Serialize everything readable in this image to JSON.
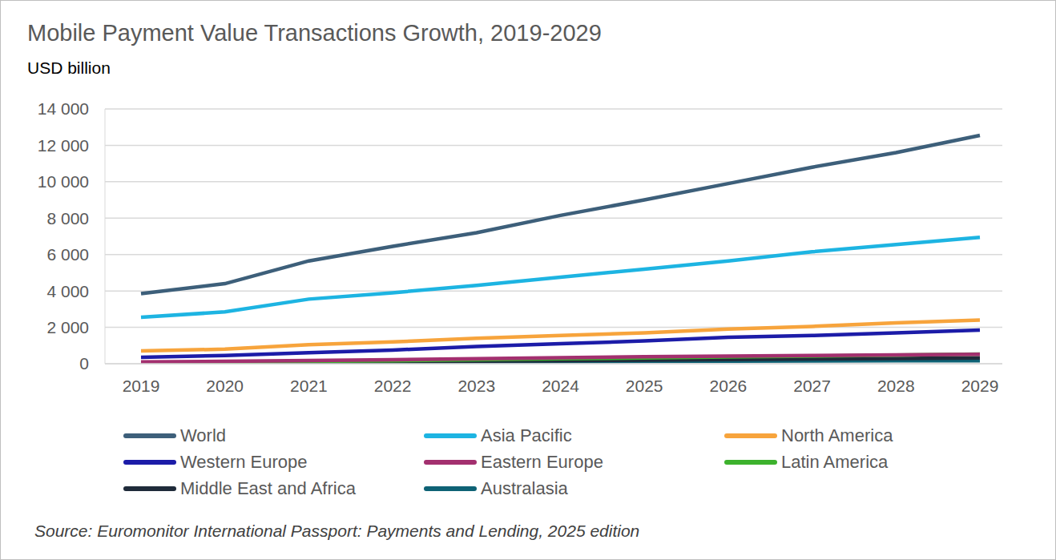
{
  "chart_data": {
    "type": "line",
    "title": "Mobile Payment Value Transactions Growth, 2019-2029",
    "subtitle": "USD billion",
    "source": "Source: Euromonitor International Passport: Payments and Lending, 2025 edition",
    "categories": [
      "2019",
      "2020",
      "2021",
      "2022",
      "2023",
      "2024",
      "2025",
      "2026",
      "2027",
      "2028",
      "2029"
    ],
    "series": [
      {
        "name": "World",
        "color": "#3d5f7a",
        "values": [
          3850,
          4400,
          5650,
          6450,
          7200,
          8150,
          9000,
          9900,
          10800,
          11600,
          12550
        ]
      },
      {
        "name": "Asia Pacific",
        "color": "#1db4e2",
        "values": [
          2550,
          2850,
          3550,
          3900,
          4300,
          4750,
          5200,
          5650,
          6150,
          6550,
          6950
        ]
      },
      {
        "name": "North America",
        "color": "#f7a43c",
        "values": [
          700,
          800,
          1050,
          1200,
          1400,
          1550,
          1700,
          1900,
          2050,
          2250,
          2400
        ]
      },
      {
        "name": "Western Europe",
        "color": "#1c1ca8",
        "values": [
          350,
          450,
          600,
          750,
          950,
          1100,
          1250,
          1450,
          1550,
          1700,
          1850
        ]
      },
      {
        "name": "Eastern Europe",
        "color": "#a3306f",
        "values": [
          100,
          130,
          180,
          220,
          280,
          330,
          380,
          420,
          450,
          480,
          520
        ]
      },
      {
        "name": "Latin America",
        "color": "#3db22d",
        "values": [
          50,
          80,
          130,
          170,
          220,
          270,
          320,
          370,
          420,
          470,
          530
        ]
      },
      {
        "name": "Middle East and Africa",
        "color": "#1f2b3a",
        "values": [
          30,
          50,
          80,
          110,
          140,
          170,
          200,
          230,
          260,
          290,
          320
        ]
      },
      {
        "name": "Australasia",
        "color": "#0e6275",
        "values": [
          60,
          70,
          90,
          100,
          110,
          120,
          130,
          140,
          150,
          160,
          170
        ]
      }
    ],
    "ylim": [
      0,
      14000
    ],
    "yticks": [
      0,
      {
        "value": 2000,
        "label": "2 000"
      },
      {
        "value": 4000,
        "label": "4 000"
      },
      {
        "value": 6000,
        "label": "6 000"
      },
      {
        "value": 8000,
        "label": "8 000"
      },
      {
        "value": 10000,
        "label": "10 000"
      },
      {
        "value": 12000,
        "label": "12 000"
      },
      {
        "value": 14000,
        "label": "14 000"
      }
    ],
    "grid": true,
    "legend": "bottom"
  }
}
